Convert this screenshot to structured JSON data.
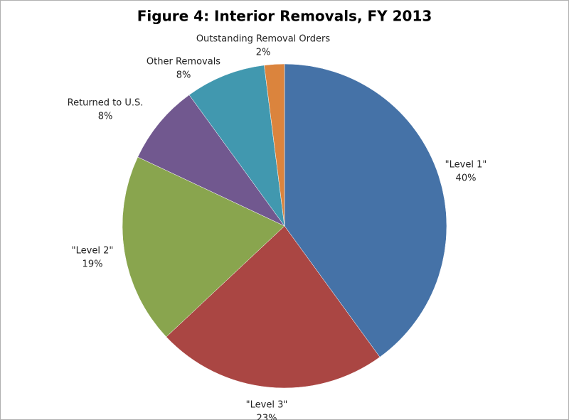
{
  "chart_data": {
    "type": "pie",
    "title": "Figure 4: Interior Removals, FY 2013",
    "categories": [
      "\"Level 1\"",
      "\"Level 3\"",
      "\"Level 2\"",
      "Returned to U.S.",
      "Other Removals",
      "Outstanding Removal Orders"
    ],
    "values": [
      40,
      23,
      19,
      8,
      8,
      2
    ],
    "value_labels": [
      "40%",
      "23%",
      "19%",
      "8%",
      "8%",
      "2%"
    ],
    "colors": [
      "#4572a7",
      "#aa4643",
      "#89a54e",
      "#71588f",
      "#4198af",
      "#db843d"
    ]
  }
}
